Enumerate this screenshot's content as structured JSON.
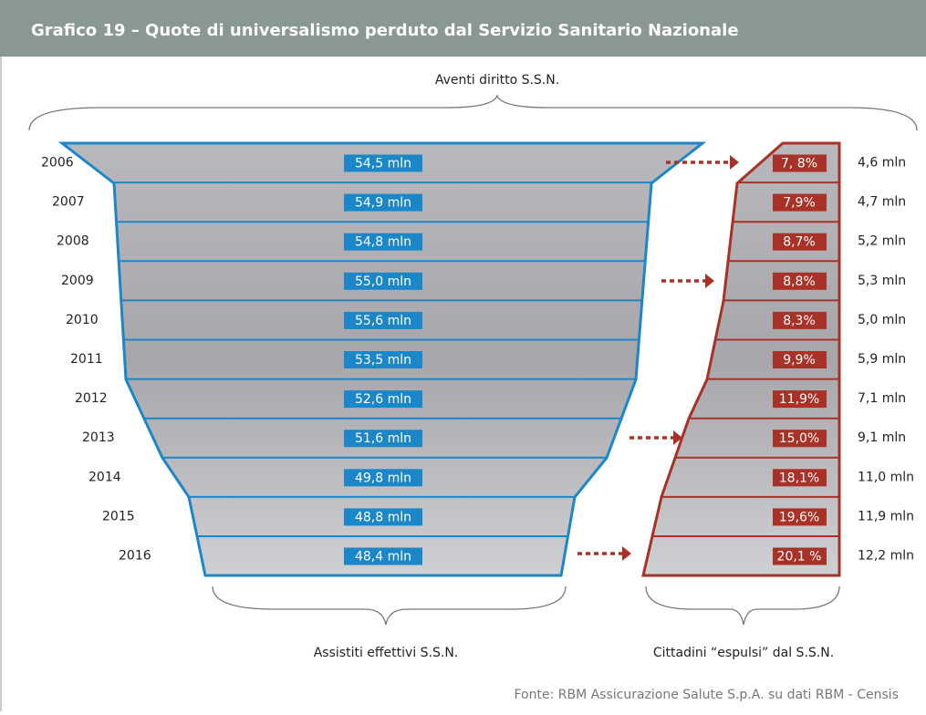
{
  "title": "Grafico 19 – Quote di universalismo perduto dal Servizio Sanitario Nazionale",
  "top_label": "Aventi diritto S.S.N.",
  "rows": [
    {
      "year": "2006",
      "assisted": "54,5 mln",
      "percent": "7, 8%",
      "expelled": "4,6 mln"
    },
    {
      "year": "2007",
      "assisted": "54,9 mln",
      "percent": "7,9%",
      "expelled": "4,7 mln"
    },
    {
      "year": "2008",
      "assisted": "54,8 mln",
      "percent": "8,7%",
      "expelled": "5,2 mln"
    },
    {
      "year": "2009",
      "assisted": "55,0 mln",
      "percent": "8,8%",
      "expelled": "5,3 mln"
    },
    {
      "year": "2010",
      "assisted": "55,6 mln",
      "percent": "8,3%",
      "expelled": "5,0 mln"
    },
    {
      "year": "2011",
      "assisted": "53,5 mln",
      "percent": "9,9%",
      "expelled": "5,9 mln"
    },
    {
      "year": "2012",
      "assisted": "52,6 mln",
      "percent": "11,9%",
      "expelled": "7,1 mln"
    },
    {
      "year": "2013",
      "assisted": "51,6 mln",
      "percent": "15,0%",
      "expelled": "9,1 mln"
    },
    {
      "year": "2014",
      "assisted": "49,8 mln",
      "percent": "18,1%",
      "expelled": "11,0 mln"
    },
    {
      "year": "2015",
      "assisted": "48,8 mln",
      "percent": "19,6%",
      "expelled": "11,9 mln"
    },
    {
      "year": "2016",
      "assisted": "48,4 mln",
      "percent": "20,1 %",
      "expelled": "12,2 mln"
    }
  ],
  "bottom_left_label": "Assistiti effettivi S.S.N.",
  "bottom_right_label": "Cittadini “espulsi” dal S.S.N.",
  "source": "Fonte: RBM Assicurazione Salute S.p.A. su dati RBM - Censis"
}
